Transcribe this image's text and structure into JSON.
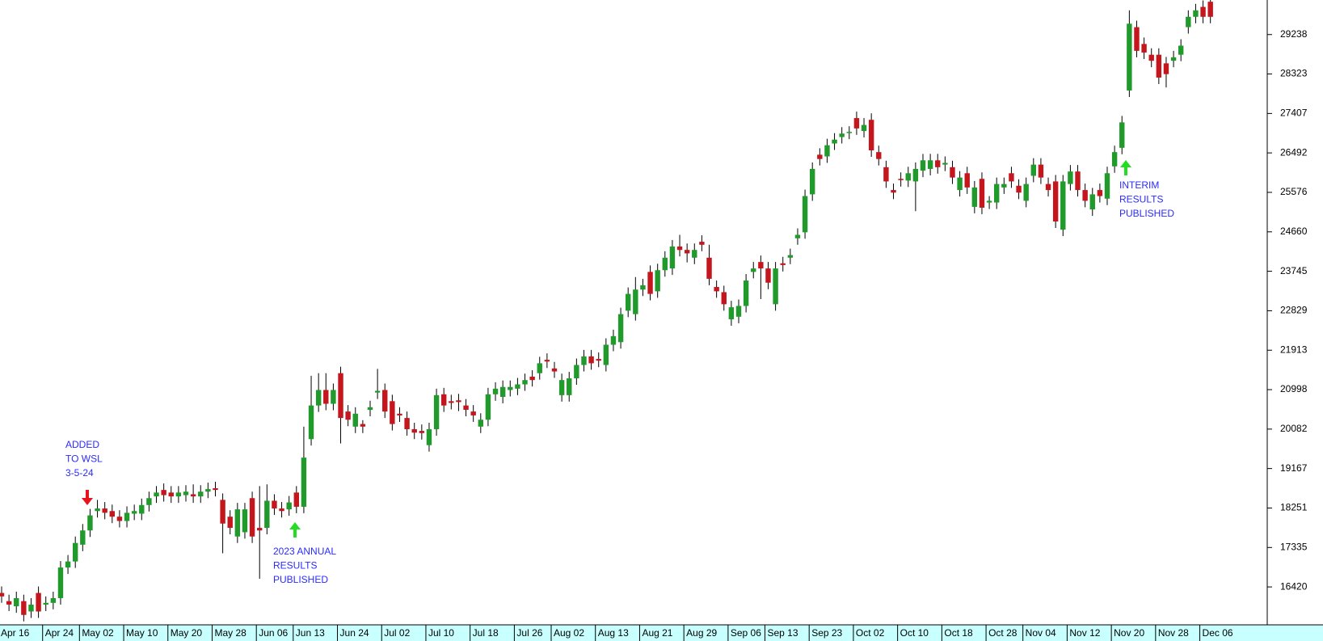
{
  "chart_data": {
    "type": "candlestick",
    "up_color": "#1f9a2b",
    "down_color": "#c4161c",
    "ylim": [
      15540,
      30040
    ],
    "yticks": [
      16420,
      17335,
      18251,
      19167,
      20082,
      20998,
      21913,
      22829,
      23745,
      24660,
      25576,
      26492,
      27407,
      28323,
      29238
    ],
    "categories": [
      "Apr 16",
      null,
      null,
      null,
      null,
      null,
      "Apr 24",
      null,
      null,
      null,
      null,
      "May 02",
      null,
      null,
      null,
      null,
      null,
      "May 10",
      null,
      null,
      null,
      null,
      null,
      "May 20",
      null,
      null,
      null,
      null,
      null,
      "May 28",
      null,
      null,
      null,
      null,
      null,
      "Jun 06",
      null,
      null,
      null,
      null,
      "Jun 13",
      null,
      null,
      null,
      null,
      null,
      "Jun 24",
      null,
      null,
      null,
      null,
      null,
      "Jul 02",
      null,
      null,
      null,
      null,
      null,
      "Jul 10",
      null,
      null,
      null,
      null,
      null,
      "Jul 18",
      null,
      null,
      null,
      null,
      null,
      "Jul 26",
      null,
      null,
      null,
      null,
      "Aug 02",
      null,
      null,
      null,
      null,
      null,
      "Aug 13",
      null,
      null,
      null,
      null,
      null,
      "Aug 21",
      null,
      null,
      null,
      null,
      null,
      "Aug 29",
      null,
      null,
      null,
      null,
      null,
      "Sep 06",
      null,
      null,
      null,
      null,
      "Sep 13",
      null,
      null,
      null,
      null,
      null,
      "Sep 23",
      null,
      null,
      null,
      null,
      null,
      "Oct 02",
      null,
      null,
      null,
      null,
      null,
      "Oct 10",
      null,
      null,
      null,
      null,
      null,
      "Oct 18",
      null,
      null,
      null,
      null,
      null,
      "Oct 28",
      null,
      null,
      null,
      null,
      "Nov 04",
      null,
      null,
      null,
      null,
      null,
      "Nov 12",
      null,
      null,
      null,
      null,
      null,
      "Nov 20",
      null,
      null,
      null,
      null,
      null,
      "Nov 28",
      null,
      null,
      null,
      null,
      null,
      "Dec 06",
      null
    ],
    "open": [
      16280,
      16090,
      15970,
      16090,
      15850,
      16280,
      16010,
      16050,
      16160,
      16870,
      17010,
      17400,
      17730,
      18180,
      18240,
      18180,
      18050,
      17950,
      18120,
      18120,
      18320,
      18520,
      18670,
      18610,
      18520,
      18550,
      18570,
      18520,
      18630,
      18710,
      18440,
      18050,
      17590,
      17690,
      18480,
      17790,
      17790,
      18420,
      18240,
      18220,
      18610,
      18280,
      19850,
      20630,
      20990,
      20670,
      21380,
      20490,
      20140,
      20200,
      20530,
      20930,
      20990,
      20730,
      20440,
      20340,
      20080,
      20040,
      19710,
      20080,
      20890,
      20730,
      20750,
      20630,
      20490,
      20140,
      20300,
      20890,
      20830,
      20990,
      21020,
      21120,
      21300,
      21380,
      21690,
      21490,
      20870,
      20870,
      21260,
      21570,
      21770,
      21710,
      21570,
      22040,
      22100,
      22830,
      22750,
      23320,
      23730,
      23280,
      23770,
      23810,
      24320,
      24240,
      24060,
      24430,
      24060,
      23380,
      23260,
      22630,
      22690,
      22940,
      23730,
      23960,
      23810,
      22980,
      23930,
      24060,
      24510,
      24650,
      25530,
      26450,
      26410,
      26710,
      26860,
      26960,
      27300,
      27000,
      27260,
      26510,
      26160,
      25630,
      25890,
      25850,
      25830,
      26080,
      26120,
      26320,
      26220,
      26160,
      25630,
      26020,
      25240,
      25890,
      25340,
      25340,
      25690,
      26020,
      25730,
      25380,
      25960,
      26220,
      25770,
      25830,
      24710,
      25770,
      26060,
      25630,
      25180,
      25630,
      25430,
      26180,
      26610,
      27940,
      29410,
      29020,
      28770,
      28770,
      28570,
      28630,
      28770,
      29410,
      29650,
      29880,
      30000
    ],
    "high": [
      16430,
      16240,
      16310,
      16240,
      16160,
      16430,
      16200,
      16310,
      17020,
      17160,
      17590,
      17880,
      18230,
      18440,
      18390,
      18330,
      18200,
      18290,
      18330,
      18470,
      18630,
      18760,
      18820,
      18760,
      18760,
      18780,
      18800,
      18780,
      18840,
      18860,
      18590,
      18200,
      18370,
      18370,
      18630,
      18760,
      18800,
      18570,
      18390,
      18530,
      18760,
      20140,
      21320,
      21380,
      21380,
      21140,
      21530,
      20640,
      20590,
      20290,
      20740,
      21480,
      21140,
      20880,
      20590,
      20490,
      20230,
      20190,
      20230,
      21020,
      21040,
      20880,
      20900,
      20780,
      20640,
      20450,
      21040,
      21170,
      21210,
      21210,
      21270,
      21370,
      21450,
      21760,
      21840,
      21640,
      21370,
      21410,
      21720,
      21920,
      21920,
      21860,
      22190,
      22390,
      22900,
      23370,
      23610,
      23570,
      23880,
      23920,
      24210,
      24470,
      24590,
      24390,
      24390,
      24580,
      24360,
      23530,
      23410,
      23060,
      23090,
      23680,
      23960,
      24110,
      23960,
      23960,
      24080,
      24270,
      24740,
      25640,
      26270,
      26600,
      26820,
      26950,
      27090,
      27110,
      27450,
      27300,
      27410,
      26660,
      26310,
      25780,
      26040,
      26170,
      26270,
      26470,
      26470,
      26470,
      26410,
      26310,
      26070,
      26170,
      25840,
      26040,
      25490,
      25920,
      25920,
      26170,
      25880,
      25920,
      26370,
      26370,
      25920,
      25980,
      25980,
      26210,
      26210,
      25780,
      25680,
      25780,
      26170,
      26660,
      27350,
      29800,
      29560,
      29170,
      28920,
      28920,
      28720,
      28860,
      29130,
      29800,
      29950,
      30030,
      30040
    ],
    "low": [
      16050,
      15860,
      15820,
      15620,
      15700,
      15700,
      15860,
      15900,
      16010,
      16720,
      16860,
      17250,
      17580,
      18030,
      17990,
      17900,
      17800,
      17800,
      17970,
      17970,
      18170,
      18370,
      18400,
      18370,
      18370,
      18400,
      18370,
      18370,
      18480,
      18520,
      17200,
      17640,
      17440,
      17540,
      17440,
      16610,
      17640,
      18090,
      18030,
      18070,
      18130,
      18130,
      19700,
      20480,
      20520,
      20520,
      19750,
      20150,
      19990,
      19990,
      20380,
      20780,
      20340,
      20050,
      20250,
      19930,
      19850,
      19840,
      19560,
      19930,
      20480,
      20540,
      20500,
      20380,
      20250,
      19990,
      20150,
      20740,
      20680,
      20840,
      20870,
      20970,
      21070,
      21230,
      21500,
      21270,
      20720,
      20720,
      21110,
      21420,
      21460,
      21520,
      21420,
      21890,
      21950,
      22680,
      22600,
      23170,
      23070,
      23130,
      23620,
      23660,
      24090,
      23950,
      23910,
      24210,
      23420,
      23130,
      22830,
      22480,
      22540,
      22790,
      23580,
      23100,
      23330,
      22830,
      23740,
      23910,
      24360,
      24500,
      25380,
      26200,
      26260,
      26560,
      26710,
      26810,
      26910,
      26850,
      26400,
      26200,
      25680,
      25420,
      25710,
      25700,
      25140,
      25930,
      25970,
      26010,
      26070,
      25770,
      25480,
      25540,
      25090,
      25070,
      25190,
      25190,
      25540,
      25680,
      25420,
      25230,
      25810,
      25770,
      25480,
      24750,
      24560,
      25620,
      25480,
      25230,
      25030,
      25340,
      25280,
      26030,
      26460,
      27790,
      28710,
      28670,
      28480,
      28090,
      28010,
      28480,
      28620,
      29260,
      29500,
      29500,
      29500
    ],
    "close": [
      16200,
      16010,
      16160,
      15770,
      16010,
      15850,
      16050,
      16160,
      16870,
      17010,
      17440,
      17730,
      18080,
      18240,
      18140,
      18050,
      17950,
      18140,
      18180,
      18320,
      18480,
      18610,
      18550,
      18520,
      18610,
      18630,
      18520,
      18630,
      18690,
      18670,
      17890,
      17790,
      18220,
      18220,
      17590,
      17730,
      18420,
      18240,
      18180,
      18380,
      18280,
      19420,
      20630,
      20990,
      20670,
      20990,
      20340,
      20300,
      20440,
      20140,
      20590,
      20970,
      20490,
      20200,
      20400,
      20080,
      20000,
      19990,
      20080,
      20870,
      20630,
      20690,
      20710,
      20530,
      20400,
      20300,
      20890,
      21020,
      21060,
      21060,
      21120,
      21220,
      21220,
      21610,
      21650,
      21420,
      21220,
      21260,
      21570,
      21770,
      21610,
      21670,
      22040,
      22240,
      22750,
      23220,
      23320,
      23420,
      23220,
      23770,
      24060,
      24320,
      24240,
      24160,
      24240,
      24360,
      23570,
      23280,
      22980,
      22910,
      22940,
      23530,
      23810,
      23810,
      23480,
      23810,
      23890,
      24120,
      24590,
      25490,
      26120,
      26350,
      26670,
      26800,
      26940,
      26980,
      27060,
      27140,
      26550,
      26350,
      25830,
      25570,
      25860,
      26020,
      26120,
      26320,
      26320,
      26160,
      26260,
      25920,
      25920,
      25690,
      25690,
      25220,
      25380,
      25770,
      25770,
      25830,
      25570,
      25770,
      26220,
      25920,
      25630,
      24900,
      25830,
      26060,
      25630,
      25380,
      25530,
      25490,
      26020,
      26510,
      27200,
      29490,
      28860,
      28820,
      28630,
      28240,
      28320,
      28710,
      28980,
      29650,
      29800,
      29650,
      29650
    ],
    "annotations": [
      {
        "lines": [
          "ADDED",
          "TO WSL",
          "3-5-24"
        ]
      },
      {
        "lines": [
          "2023 ANNUAL",
          "RESULTS",
          "PUBLISHED"
        ]
      },
      {
        "lines": [
          "INTERIM",
          "RESULTS",
          "PUBLISHED"
        ]
      }
    ]
  }
}
